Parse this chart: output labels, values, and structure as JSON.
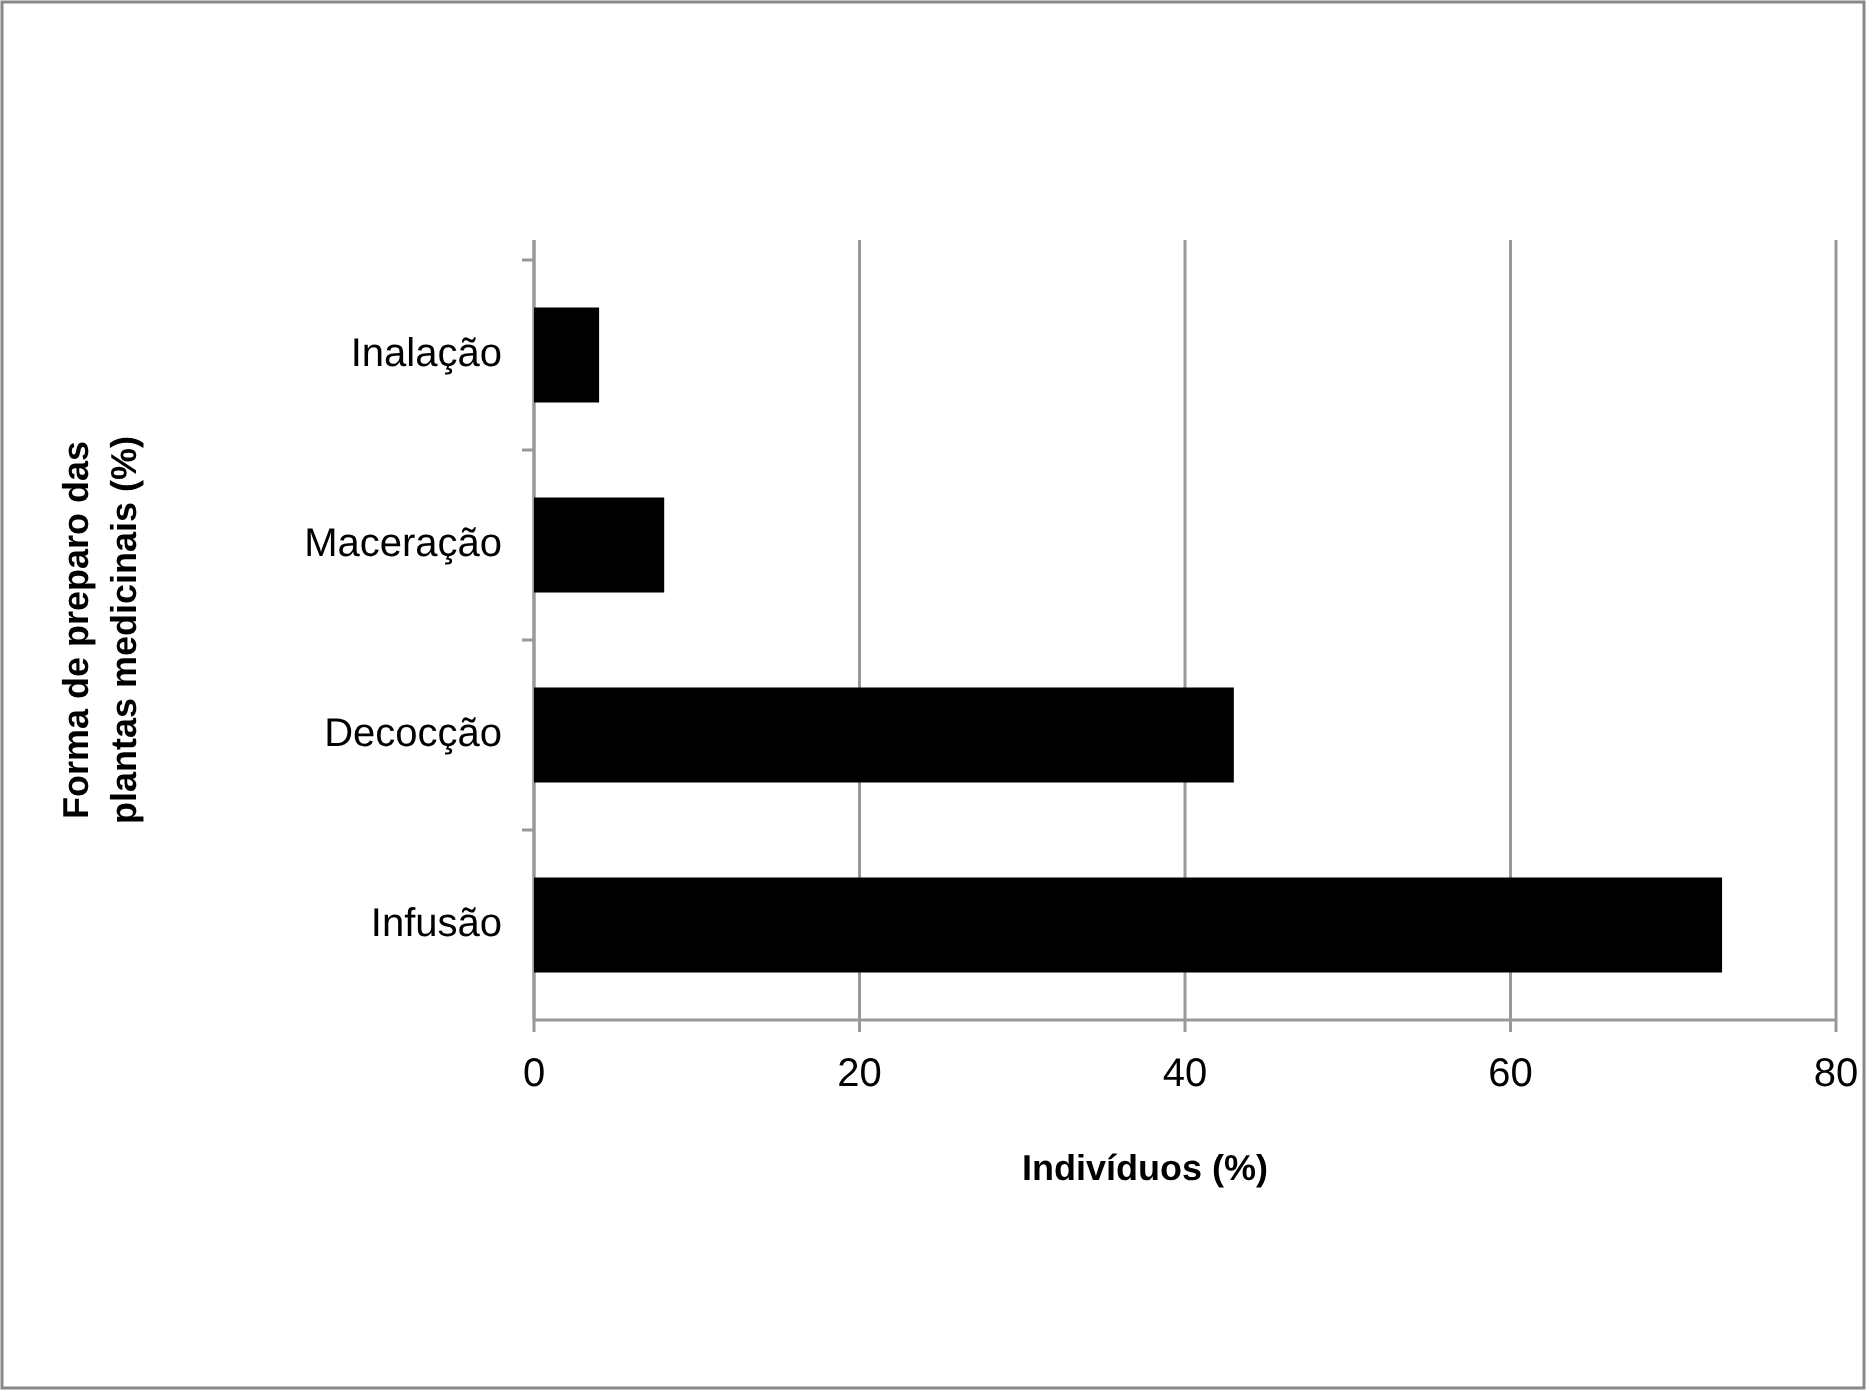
{
  "chart_data": {
    "type": "bar",
    "orientation": "horizontal",
    "categories": [
      "Inalação",
      "Maceração",
      "Decocção",
      "Infusão"
    ],
    "values": [
      4,
      8,
      43,
      73
    ],
    "color": "#000000",
    "xlim": [
      0,
      80
    ],
    "xticks": [
      0,
      20,
      40,
      60,
      80
    ],
    "grid": "x",
    "xlabel": "Indivíduos (%)",
    "ylabel": "Forma de preparo das plantas medicinais (%)"
  }
}
